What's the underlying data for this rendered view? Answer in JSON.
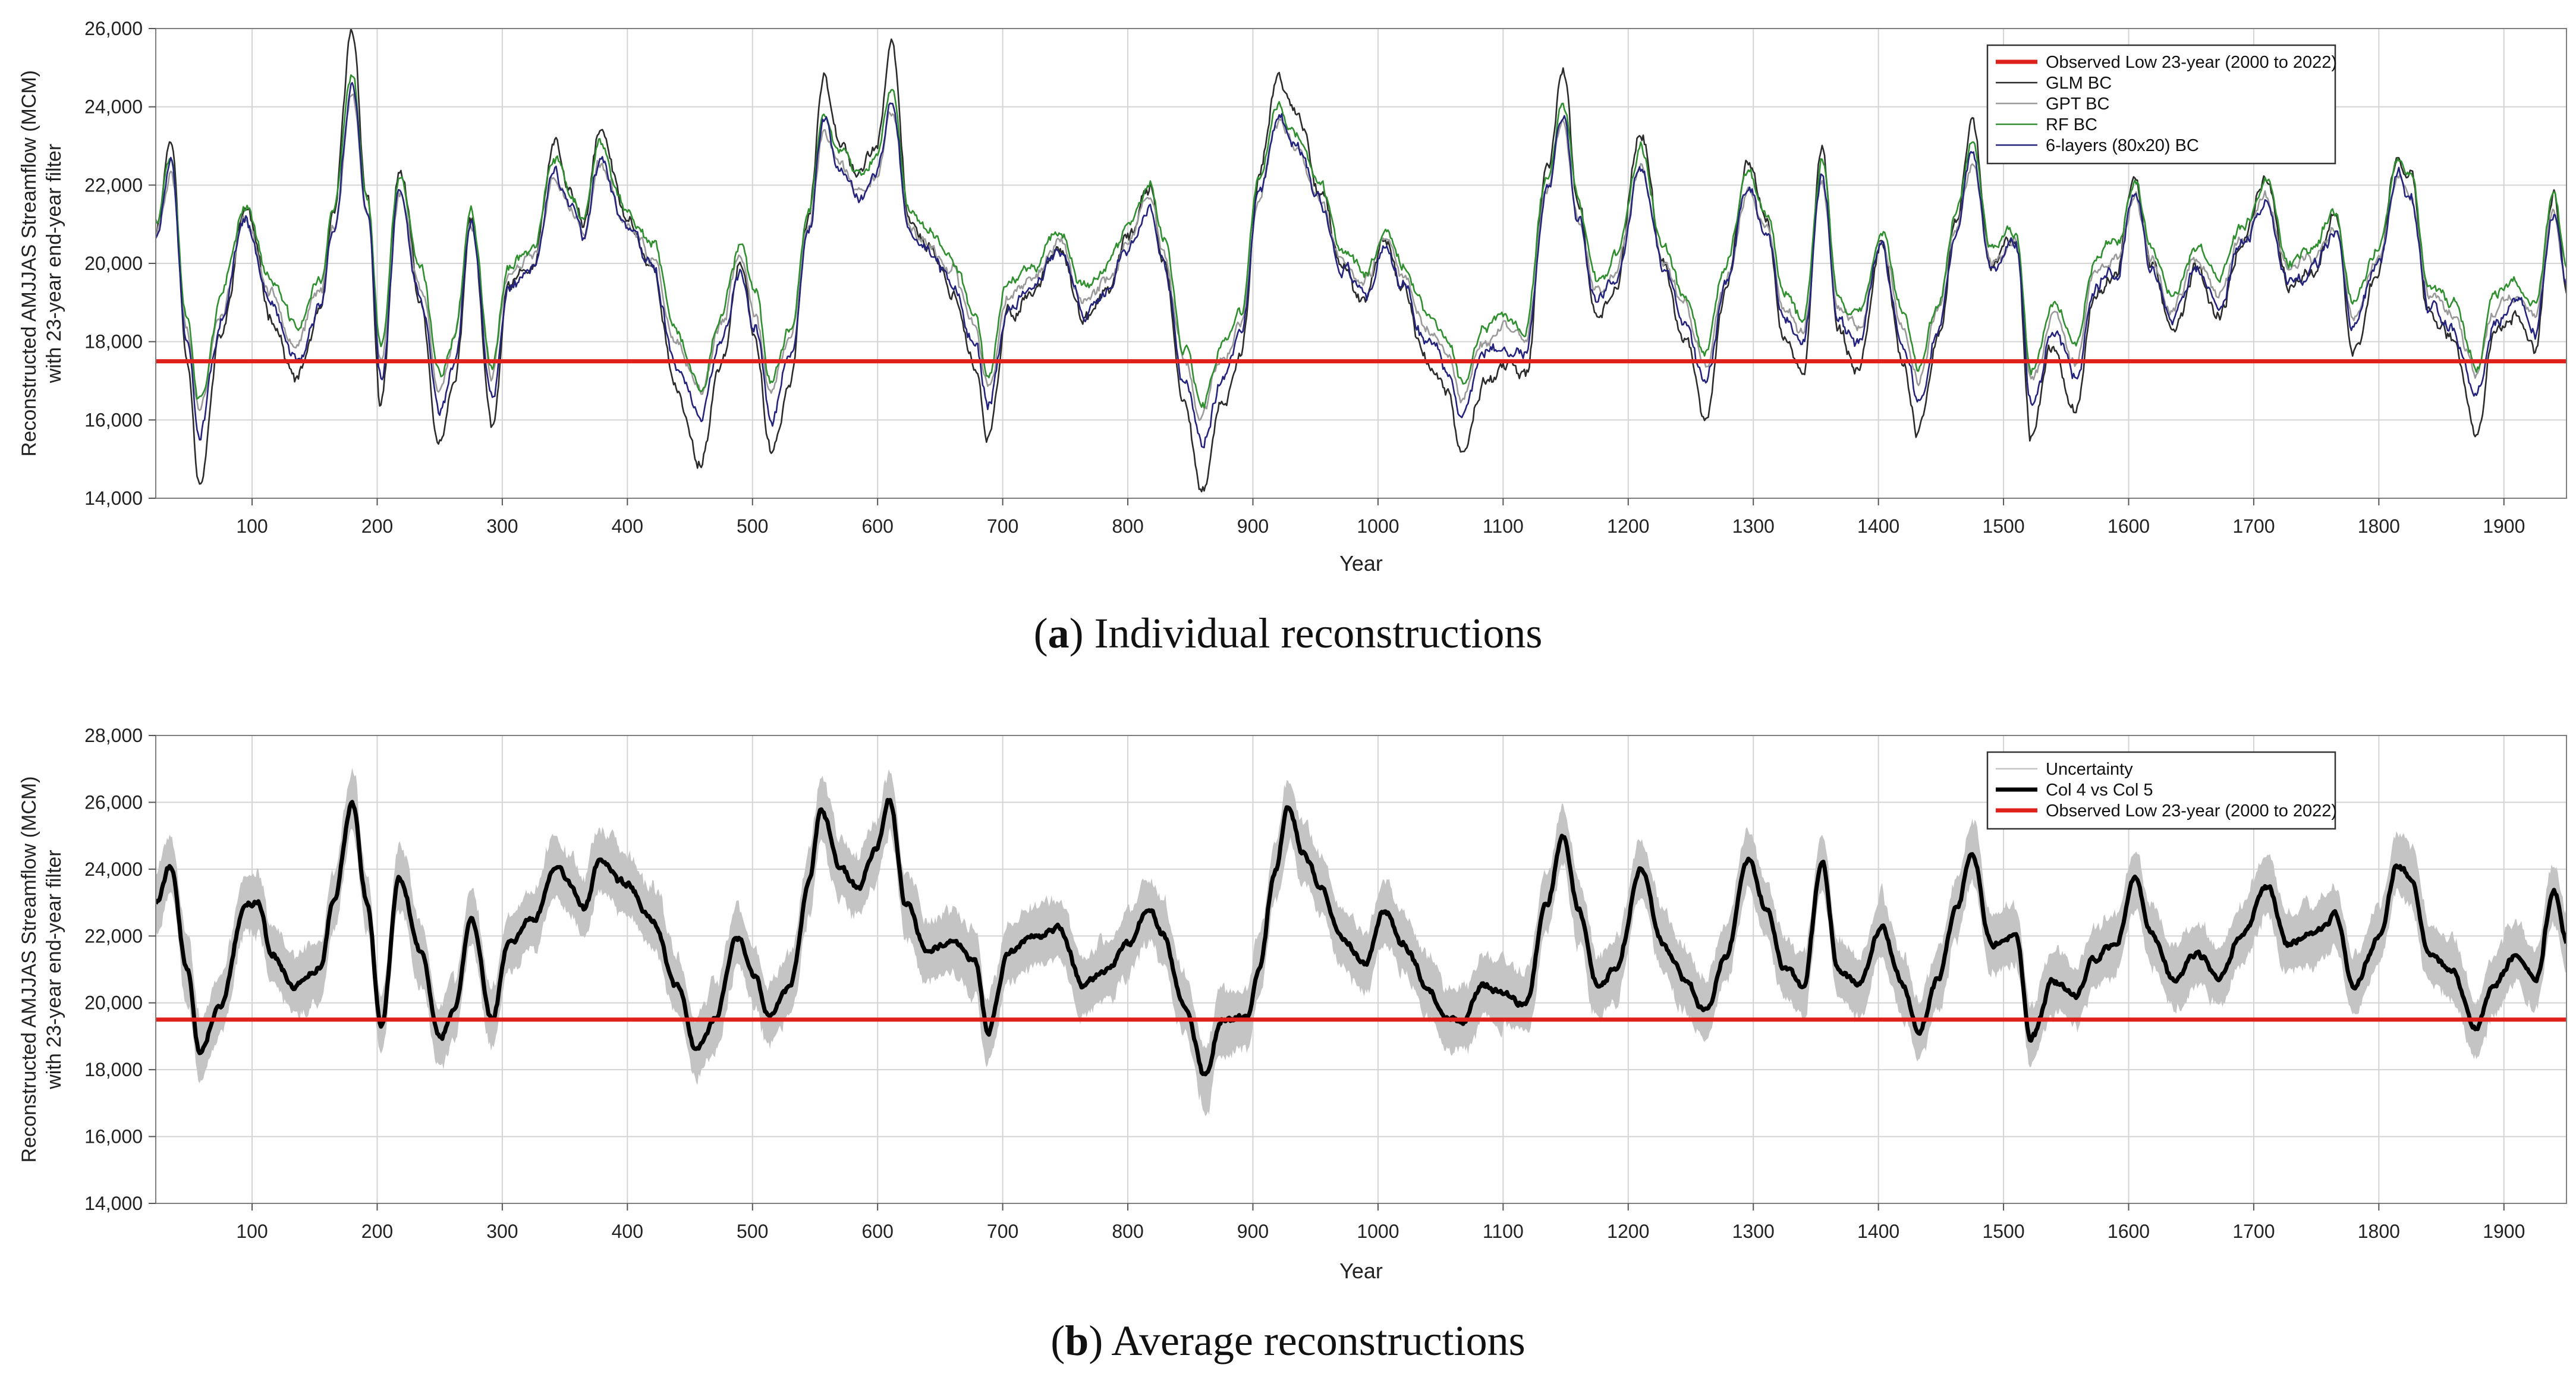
{
  "chart_data": [
    {
      "type": "line",
      "panel": "a",
      "caption_label": "a",
      "caption_text": "Individual reconstructions",
      "xlabel": "Year",
      "ylabel_line1": "Reconstructed AMJJAS Streamflow (MCM)",
      "ylabel_line2": "with 23-year end-year filter",
      "xlim": [
        23,
        1950
      ],
      "ylim": [
        14000,
        26000
      ],
      "xticks": [
        100,
        200,
        300,
        400,
        500,
        600,
        700,
        800,
        900,
        1000,
        1100,
        1200,
        1300,
        1400,
        1500,
        1600,
        1700,
        1800,
        1900
      ],
      "yticks": [
        14000,
        16000,
        18000,
        20000,
        22000,
        24000,
        26000
      ],
      "ytick_labels": [
        "14,000",
        "16,000",
        "18,000",
        "20,000",
        "22,000",
        "24,000",
        "26,000"
      ],
      "grid": true,
      "legend_position": "top-right",
      "reference_line": {
        "name": "Observed Low 23-year (2000 to 2022)",
        "value": 17500,
        "color": "#e0201b"
      },
      "keyframes": [
        [
          23,
          20800
        ],
        [
          35,
          22700
        ],
        [
          48,
          18000
        ],
        [
          58,
          15600
        ],
        [
          75,
          18500
        ],
        [
          95,
          21200
        ],
        [
          115,
          19000
        ],
        [
          135,
          17600
        ],
        [
          155,
          19000
        ],
        [
          165,
          21000
        ],
        [
          180,
          24900
        ],
        [
          192,
          21500
        ],
        [
          203,
          17000
        ],
        [
          218,
          22000
        ],
        [
          235,
          19200
        ],
        [
          250,
          16200
        ],
        [
          262,
          17500
        ],
        [
          275,
          21000
        ],
        [
          292,
          16600
        ],
        [
          305,
          19500
        ],
        [
          325,
          20000
        ],
        [
          342,
          22500
        ],
        [
          355,
          21500
        ],
        [
          365,
          20800
        ],
        [
          378,
          22800
        ],
        [
          400,
          21000
        ],
        [
          420,
          20000
        ],
        [
          440,
          17300
        ],
        [
          458,
          15900
        ],
        [
          475,
          18000
        ],
        [
          490,
          20000
        ],
        [
          502,
          18500
        ],
        [
          515,
          16000
        ],
        [
          530,
          17600
        ],
        [
          545,
          21000
        ],
        [
          557,
          24000
        ],
        [
          570,
          22800
        ],
        [
          585,
          22000
        ],
        [
          598,
          22500
        ],
        [
          612,
          24500
        ],
        [
          625,
          21000
        ],
        [
          640,
          20500
        ],
        [
          660,
          19500
        ],
        [
          678,
          18000
        ],
        [
          688,
          16300
        ],
        [
          705,
          19000
        ],
        [
          725,
          19500
        ],
        [
          745,
          20500
        ],
        [
          765,
          18800
        ],
        [
          785,
          19500
        ],
        [
          800,
          20500
        ],
        [
          818,
          21700
        ],
        [
          828,
          20200
        ],
        [
          845,
          17000
        ],
        [
          860,
          15300
        ],
        [
          875,
          17000
        ],
        [
          890,
          18000
        ],
        [
          905,
          22000
        ],
        [
          920,
          24000
        ],
        [
          935,
          23200
        ],
        [
          955,
          21600
        ],
        [
          970,
          20000
        ],
        [
          990,
          19200
        ],
        [
          1005,
          20500
        ],
        [
          1020,
          19500
        ],
        [
          1040,
          18000
        ],
        [
          1055,
          17300
        ],
        [
          1068,
          16000
        ],
        [
          1085,
          17600
        ],
        [
          1100,
          17900
        ],
        [
          1118,
          17600
        ],
        [
          1135,
          22000
        ],
        [
          1148,
          24200
        ],
        [
          1160,
          21300
        ],
        [
          1175,
          19000
        ],
        [
          1190,
          19600
        ],
        [
          1210,
          22800
        ],
        [
          1228,
          20000
        ],
        [
          1245,
          18500
        ],
        [
          1262,
          16800
        ],
        [
          1278,
          19500
        ],
        [
          1296,
          22200
        ],
        [
          1310,
          21000
        ],
        [
          1325,
          18500
        ],
        [
          1340,
          17800
        ],
        [
          1355,
          22500
        ],
        [
          1368,
          18500
        ],
        [
          1385,
          18000
        ],
        [
          1402,
          20500
        ],
        [
          1420,
          18000
        ],
        [
          1432,
          16500
        ],
        [
          1448,
          18500
        ],
        [
          1462,
          21000
        ],
        [
          1475,
          23000
        ],
        [
          1490,
          20000
        ],
        [
          1510,
          20500
        ],
        [
          1522,
          16400
        ],
        [
          1540,
          18300
        ],
        [
          1558,
          17000
        ],
        [
          1572,
          19500
        ],
        [
          1590,
          20000
        ],
        [
          1605,
          22000
        ],
        [
          1618,
          20000
        ],
        [
          1635,
          18500
        ],
        [
          1655,
          20000
        ],
        [
          1672,
          19000
        ],
        [
          1690,
          20500
        ],
        [
          1710,
          21800
        ],
        [
          1728,
          19500
        ],
        [
          1748,
          20000
        ],
        [
          1765,
          21000
        ],
        [
          1780,
          18200
        ],
        [
          1800,
          20000
        ],
        [
          1815,
          22500
        ],
        [
          1825,
          22000
        ],
        [
          1840,
          19000
        ],
        [
          1858,
          18500
        ],
        [
          1878,
          16500
        ],
        [
          1892,
          18500
        ],
        [
          1910,
          19000
        ],
        [
          1925,
          18300
        ],
        [
          1940,
          21500
        ],
        [
          1950,
          19500
        ]
      ],
      "series": [
        {
          "name": "GLM BC",
          "color": "#2b2b2b",
          "amp": 1.22,
          "offset": -150,
          "jitter": 260,
          "seed": 11
        },
        {
          "name": "GPT BC",
          "color": "#9a9a9a",
          "amp": 0.85,
          "offset": 150,
          "jitter": 230,
          "seed": 23
        },
        {
          "name": "RF BC",
          "color": "#2f8f2f",
          "amp": 0.88,
          "offset": 500,
          "jitter": 220,
          "seed": 37
        },
        {
          "name": "6-layers (80x20) BC",
          "color": "#23237e",
          "amp": 0.95,
          "offset": -100,
          "jitter": 250,
          "seed": 51
        }
      ]
    },
    {
      "type": "line",
      "panel": "b",
      "caption_label": "b",
      "caption_text": "Average reconstructions",
      "xlabel": "Year",
      "ylabel_line1": "Reconstructed AMJJAS Streamflow (MCM)",
      "ylabel_line2": "with 23-year end-year filter",
      "xlim": [
        23,
        1950
      ],
      "ylim": [
        14000,
        28000
      ],
      "xticks": [
        100,
        200,
        300,
        400,
        500,
        600,
        700,
        800,
        900,
        1000,
        1100,
        1200,
        1300,
        1400,
        1500,
        1600,
        1700,
        1800,
        1900
      ],
      "yticks": [
        14000,
        16000,
        18000,
        20000,
        22000,
        24000,
        26000,
        28000
      ],
      "ytick_labels": [
        "14,000",
        "16,000",
        "18,000",
        "20,000",
        "22,000",
        "24,000",
        "26,000",
        "28,000"
      ],
      "grid": true,
      "legend_position": "top-right",
      "reference_line": {
        "name": "Observed Low 23-year (2000 to 2022)",
        "value": 19500,
        "color": "#e0201b"
      },
      "keyframes": [
        [
          23,
          23000
        ],
        [
          35,
          24100
        ],
        [
          48,
          21000
        ],
        [
          58,
          18600
        ],
        [
          75,
          20000
        ],
        [
          95,
          23000
        ],
        [
          105,
          23000
        ],
        [
          115,
          21500
        ],
        [
          135,
          20500
        ],
        [
          155,
          21000
        ],
        [
          165,
          23000
        ],
        [
          180,
          26000
        ],
        [
          192,
          23000
        ],
        [
          203,
          19300
        ],
        [
          218,
          23800
        ],
        [
          235,
          21500
        ],
        [
          250,
          18900
        ],
        [
          262,
          19800
        ],
        [
          275,
          22600
        ],
        [
          292,
          19500
        ],
        [
          305,
          21800
        ],
        [
          325,
          22500
        ],
        [
          342,
          24000
        ],
        [
          355,
          23500
        ],
        [
          365,
          22800
        ],
        [
          378,
          24200
        ],
        [
          400,
          23500
        ],
        [
          420,
          22500
        ],
        [
          440,
          20500
        ],
        [
          455,
          18600
        ],
        [
          470,
          19500
        ],
        [
          488,
          22000
        ],
        [
          502,
          20800
        ],
        [
          512,
          19600
        ],
        [
          530,
          20500
        ],
        [
          545,
          23500
        ],
        [
          555,
          25800
        ],
        [
          570,
          24000
        ],
        [
          585,
          23500
        ],
        [
          598,
          24500
        ],
        [
          610,
          26000
        ],
        [
          622,
          23000
        ],
        [
          640,
          21500
        ],
        [
          660,
          21800
        ],
        [
          678,
          21200
        ],
        [
          688,
          19100
        ],
        [
          705,
          21500
        ],
        [
          725,
          22000
        ],
        [
          745,
          22200
        ],
        [
          765,
          20500
        ],
        [
          785,
          21000
        ],
        [
          800,
          21800
        ],
        [
          818,
          22800
        ],
        [
          828,
          22000
        ],
        [
          845,
          20000
        ],
        [
          862,
          17800
        ],
        [
          875,
          19500
        ],
        [
          885,
          19500
        ],
        [
          895,
          19500
        ],
        [
          905,
          21000
        ],
        [
          918,
          24000
        ],
        [
          928,
          25800
        ],
        [
          940,
          24500
        ],
        [
          955,
          23500
        ],
        [
          970,
          22000
        ],
        [
          990,
          21200
        ],
        [
          1005,
          22800
        ],
        [
          1020,
          21800
        ],
        [
          1040,
          20500
        ],
        [
          1055,
          19500
        ],
        [
          1068,
          19500
        ],
        [
          1085,
          20500
        ],
        [
          1100,
          20300
        ],
        [
          1118,
          20000
        ],
        [
          1135,
          23000
        ],
        [
          1148,
          25000
        ],
        [
          1160,
          22800
        ],
        [
          1175,
          20500
        ],
        [
          1190,
          21000
        ],
        [
          1210,
          24000
        ],
        [
          1228,
          21800
        ],
        [
          1245,
          20700
        ],
        [
          1262,
          19800
        ],
        [
          1278,
          21500
        ],
        [
          1296,
          24300
        ],
        [
          1310,
          22800
        ],
        [
          1325,
          21000
        ],
        [
          1340,
          20500
        ],
        [
          1355,
          24200
        ],
        [
          1368,
          21000
        ],
        [
          1385,
          20500
        ],
        [
          1402,
          22200
        ],
        [
          1420,
          20500
        ],
        [
          1432,
          19200
        ],
        [
          1448,
          20700
        ],
        [
          1462,
          22800
        ],
        [
          1475,
          24500
        ],
        [
          1490,
          21800
        ],
        [
          1510,
          22000
        ],
        [
          1522,
          19000
        ],
        [
          1540,
          20700
        ],
        [
          1558,
          20200
        ],
        [
          1572,
          21300
        ],
        [
          1590,
          21800
        ],
        [
          1605,
          23700
        ],
        [
          1618,
          22000
        ],
        [
          1635,
          20800
        ],
        [
          1655,
          21500
        ],
        [
          1672,
          20800
        ],
        [
          1690,
          22000
        ],
        [
          1710,
          23500
        ],
        [
          1728,
          21800
        ],
        [
          1748,
          22000
        ],
        [
          1765,
          22600
        ],
        [
          1780,
          20500
        ],
        [
          1800,
          22000
        ],
        [
          1815,
          24200
        ],
        [
          1825,
          23800
        ],
        [
          1840,
          21500
        ],
        [
          1858,
          21000
        ],
        [
          1878,
          19200
        ],
        [
          1892,
          20500
        ],
        [
          1910,
          21500
        ],
        [
          1925,
          20700
        ],
        [
          1940,
          23300
        ],
        [
          1950,
          21800
        ]
      ],
      "series": [
        {
          "name": "Uncertainty",
          "color": "#c4c4c4",
          "kind": "band",
          "halfwidth": 750,
          "jitter": 420,
          "seed": 67
        },
        {
          "name": "Col 4 vs Col 5",
          "color": "#000000",
          "kind": "line",
          "amp": 1.0,
          "offset": 0,
          "jitter": 140,
          "seed": 79
        },
        {
          "name": "Observed Low 23-year (2000 to 2022)",
          "color": "#e0201b",
          "kind": "reference"
        }
      ]
    }
  ]
}
